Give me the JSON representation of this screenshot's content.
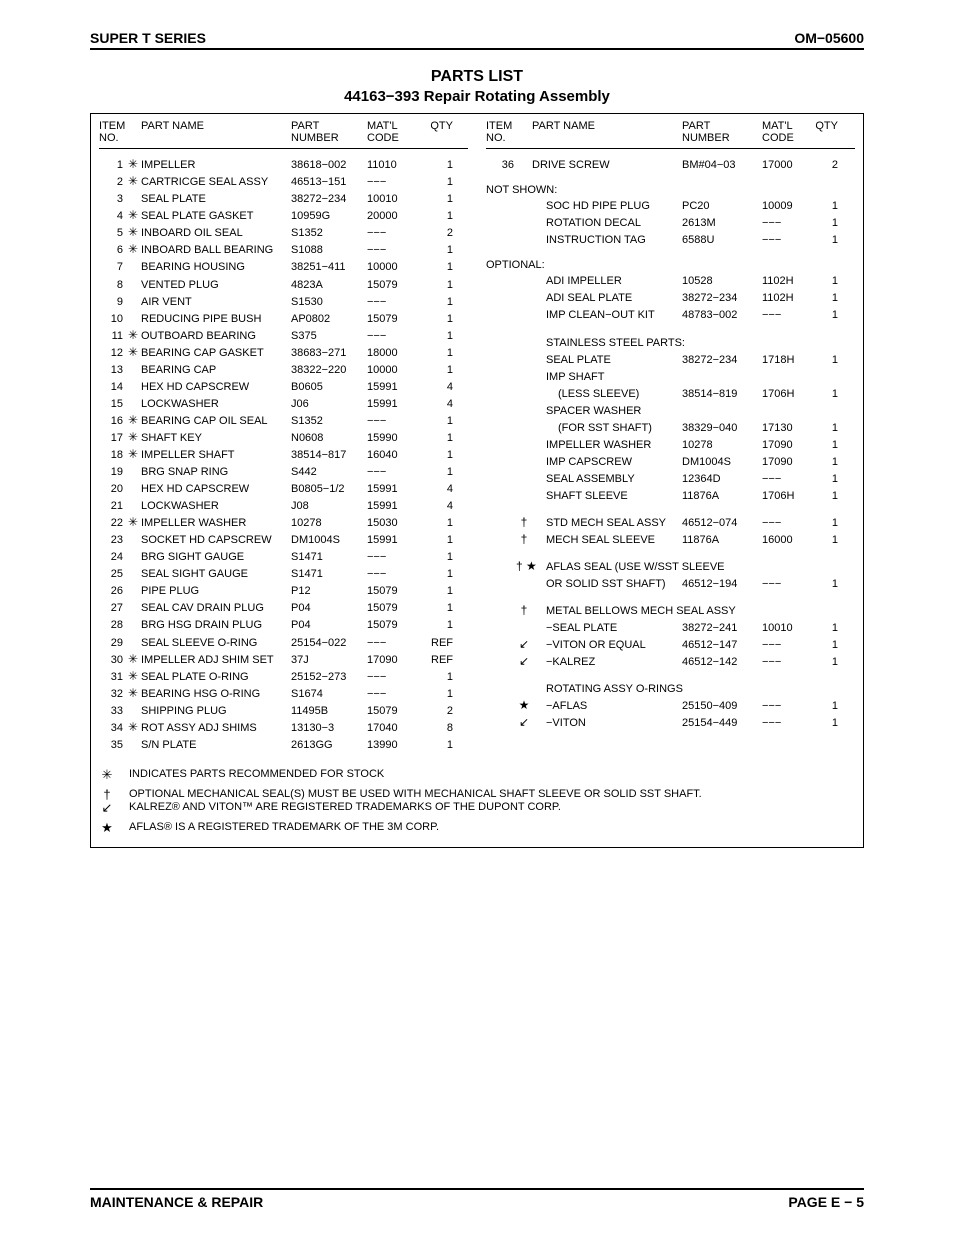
{
  "header": {
    "left": "SUPER T SERIES",
    "right": "OM−05600"
  },
  "title": {
    "line1": "PARTS LIST",
    "line2": "44163−393 Repair Rotating Assembly"
  },
  "headers": {
    "c1a": "ITEM",
    "c1b": "NO.",
    "c3": "PART NAME",
    "c4a": "PART",
    "c4b": "NUMBER",
    "c5a": "MAT'L",
    "c5b": "CODE",
    "c6": "QTY"
  },
  "left_rows": [
    {
      "n": "1",
      "s": "✳",
      "name": "IMPELLER",
      "pn": "38618−002",
      "mc": "11010",
      "q": "1"
    },
    {
      "n": "2",
      "s": "✳",
      "name": "CARTRICGE SEAL ASSY",
      "pn": "46513−151",
      "mc": "−−−",
      "q": "1"
    },
    {
      "n": "3",
      "s": "",
      "name": "SEAL PLATE",
      "pn": "38272−234",
      "mc": "10010",
      "q": "1"
    },
    {
      "n": "4",
      "s": "✳",
      "name": "SEAL PLATE GASKET",
      "pn": "10959G",
      "mc": "20000",
      "q": "1"
    },
    {
      "n": "5",
      "s": "✳",
      "name": "INBOARD OIL SEAL",
      "pn": "S1352",
      "mc": "−−−",
      "q": "2"
    },
    {
      "n": "6",
      "s": "✳",
      "name": "INBOARD BALL BEARING",
      "pn": "S1088",
      "mc": "−−−",
      "q": "1"
    },
    {
      "n": "7",
      "s": "",
      "name": "BEARING HOUSING",
      "pn": "38251−411",
      "mc": "10000",
      "q": "1"
    },
    {
      "n": "8",
      "s": "",
      "name": "VENTED PLUG",
      "pn": "4823A",
      "mc": "15079",
      "q": "1"
    },
    {
      "n": "9",
      "s": "",
      "name": "AIR VENT",
      "pn": "S1530",
      "mc": "−−−",
      "q": "1"
    },
    {
      "n": "10",
      "s": "",
      "name": "REDUCING PIPE BUSH",
      "pn": "AP0802",
      "mc": "15079",
      "q": "1"
    },
    {
      "n": "11",
      "s": "✳",
      "name": "OUTBOARD BEARING",
      "pn": "S375",
      "mc": "−−−",
      "q": "1"
    },
    {
      "n": "12",
      "s": "✳",
      "name": "BEARING CAP GASKET",
      "pn": "38683−271",
      "mc": "18000",
      "q": "1"
    },
    {
      "n": "13",
      "s": "",
      "name": "BEARING CAP",
      "pn": "38322−220",
      "mc": "10000",
      "q": "1"
    },
    {
      "n": "14",
      "s": "",
      "name": "HEX HD CAPSCREW",
      "pn": "B0605",
      "mc": "15991",
      "q": "4"
    },
    {
      "n": "15",
      "s": "",
      "name": "LOCKWASHER",
      "pn": "J06",
      "mc": "15991",
      "q": "4"
    },
    {
      "n": "16",
      "s": "✳",
      "name": "BEARING CAP OIL SEAL",
      "pn": "S1352",
      "mc": "−−−",
      "q": "1"
    },
    {
      "n": "17",
      "s": "✳",
      "name": "SHAFT KEY",
      "pn": "N0608",
      "mc": "15990",
      "q": "1"
    },
    {
      "n": "18",
      "s": "✳",
      "name": "IMPELLER SHAFT",
      "pn": "38514−817",
      "mc": "16040",
      "q": "1"
    },
    {
      "n": "19",
      "s": "",
      "name": "BRG SNAP RING",
      "pn": "S442",
      "mc": "−−−",
      "q": "1"
    },
    {
      "n": "20",
      "s": "",
      "name": "HEX HD CAPSCREW",
      "pn": "B0805−1/2",
      "mc": "15991",
      "q": "4"
    },
    {
      "n": "21",
      "s": "",
      "name": "LOCKWASHER",
      "pn": "J08",
      "mc": "15991",
      "q": "4"
    },
    {
      "n": "22",
      "s": "✳",
      "name": "IMPELLER WASHER",
      "pn": "10278",
      "mc": "15030",
      "q": "1"
    },
    {
      "n": "23",
      "s": "",
      "name": "SOCKET HD CAPSCREW",
      "pn": "DM1004S",
      "mc": "15991",
      "q": "1"
    },
    {
      "n": "24",
      "s": "",
      "name": "BRG SIGHT GAUGE",
      "pn": "S1471",
      "mc": "−−−",
      "q": "1"
    },
    {
      "n": "25",
      "s": "",
      "name": "SEAL SIGHT GAUGE",
      "pn": "S1471",
      "mc": "−−−",
      "q": "1"
    },
    {
      "n": "26",
      "s": "",
      "name": "PIPE PLUG",
      "pn": "P12",
      "mc": "15079",
      "q": "1"
    },
    {
      "n": "27",
      "s": "",
      "name": "SEAL CAV DRAIN PLUG",
      "pn": "P04",
      "mc": "15079",
      "q": "1"
    },
    {
      "n": "28",
      "s": "",
      "name": "BRG HSG DRAIN PLUG",
      "pn": "P04",
      "mc": "15079",
      "q": "1"
    },
    {
      "n": "29",
      "s": "",
      "name": "SEAL SLEEVE O-RING",
      "pn": "25154−022",
      "mc": "−−−",
      "q": "REF"
    },
    {
      "n": "30",
      "s": "✳",
      "name": "IMPELLER ADJ SHIM SET",
      "pn": "37J",
      "mc": "17090",
      "q": "REF"
    },
    {
      "n": "31",
      "s": "✳",
      "name": " SEAL PLATE O-RING",
      "pn": "25152−273",
      "mc": "−−−",
      "q": "1"
    },
    {
      "n": "32",
      "s": "✳",
      "name": "BEARING HSG O-RING",
      "pn": "S1674",
      "mc": "−−−",
      "q": "1"
    },
    {
      "n": "33",
      "s": "",
      "name": "SHIPPING PLUG",
      "pn": "11495B",
      "mc": "15079",
      "q": "2"
    },
    {
      "n": "34",
      "s": "✳",
      "name": "ROT ASSY ADJ SHIMS",
      "pn": "13130−3",
      "mc": "17040",
      "q": "8"
    },
    {
      "n": "35",
      "s": "",
      "name": "S/N PLATE",
      "pn": "2613GG",
      "mc": "13990",
      "q": "1"
    }
  ],
  "right_rows_top": [
    {
      "n": "36",
      "s": "",
      "name": "DRIVE SCREW",
      "pn": "BM#04−03",
      "mc": "17000",
      "q": "2"
    }
  ],
  "section_not_shown": "NOT SHOWN:",
  "not_shown_rows": [
    {
      "name": "SOC HD PIPE PLUG",
      "pn": "PC20",
      "mc": "10009",
      "q": "1"
    },
    {
      "name": "ROTATION DECAL",
      "pn": "2613M",
      "mc": "−−−",
      "q": "1"
    },
    {
      "name": "INSTRUCTION TAG",
      "pn": "6588U",
      "mc": "−−−",
      "q": "1"
    }
  ],
  "section_optional": "OPTIONAL:",
  "optional_rows": [
    {
      "name": "ADI IMPELLER",
      "pn": "10528",
      "mc": "1102H",
      "q": "1"
    },
    {
      "name": "ADI  SEAL PLATE",
      "pn": "38272−234",
      "mc": "1102H",
      "q": "1"
    },
    {
      "name": "IMP CLEAN−OUT KIT",
      "pn": "48783−002",
      "mc": "−−−",
      "q": "1"
    }
  ],
  "section_sst": "STAINLESS STEEL PARTS:",
  "sst_rows": [
    {
      "name": "SEAL PLATE",
      "pn": "38272−234",
      "mc": "1718H",
      "q": "1"
    },
    {
      "name": "IMP SHAFT",
      "pn": "",
      "mc": "",
      "q": ""
    },
    {
      "name": "(LESS SLEEVE)",
      "pn": "38514−819",
      "mc": "1706H",
      "q": "1",
      "indent": true
    },
    {
      "name": "SPACER WASHER",
      "pn": "",
      "mc": "",
      "q": ""
    },
    {
      "name": "(FOR SST SHAFT)",
      "pn": "38329−040",
      "mc": "17130",
      "q": "1",
      "indent": true
    },
    {
      "name": "IMPELLER WASHER",
      "pn": "10278",
      "mc": "17090",
      "q": "1"
    },
    {
      "name": "IMP CAPSCREW",
      "pn": "DM1004S",
      "mc": "17090",
      "q": "1"
    },
    {
      "name": "SEAL ASSEMBLY",
      "pn": "12364D",
      "mc": "−−−",
      "q": "1"
    },
    {
      "name": "SHAFT SLEEVE",
      "pn": "11876A",
      "mc": "1706H",
      "q": "1"
    }
  ],
  "mech_rows": [
    {
      "s": "†",
      "name": "STD MECH SEAL ASSY",
      "pn": "46512−074",
      "mc": "−−−",
      "q": "1"
    },
    {
      "s": "†",
      "name": "MECH SEAL SLEEVE",
      "pn": "11876A",
      "mc": "16000",
      "q": "1"
    }
  ],
  "aflas_rows": [
    {
      "s": "† ★",
      "name": "AFLAS SEAL (USE W/SST SLEEVE",
      "pn": "",
      "mc": "",
      "q": ""
    },
    {
      "s": "",
      "name": "OR SOLID SST SHAFT)",
      "pn": "46512−194",
      "mc": "−−−",
      "q": "1"
    }
  ],
  "bellows_header": {
    "s": "†",
    "name": "METAL BELLOWS MECH SEAL ASSY"
  },
  "bellows_rows": [
    {
      "name": "−SEAL PLATE",
      "pn": "38272−241",
      "mc": "10010",
      "q": "1"
    },
    {
      "s": "↙",
      "name": "−VITON OR EQUAL",
      "pn": "46512−147",
      "mc": "−−−",
      "q": "1"
    },
    {
      "s": "↙",
      "name": "−KALREZ",
      "pn": "46512−142",
      "mc": "−−−",
      "q": "1"
    }
  ],
  "oring_header": "ROTATING ASSY  O-RINGS",
  "oring_rows": [
    {
      "s": "★",
      "name": "−AFLAS",
      "pn": "25150−409",
      "mc": "−−−",
      "q": "1"
    },
    {
      "s": "↙",
      "name": "−VITON",
      "pn": "25154−449",
      "mc": "−−−",
      "q": "1"
    }
  ],
  "notes": [
    {
      "sym": "✳",
      "text": "INDICATES PARTS RECOMMENDED FOR STOCK"
    },
    {
      "sym": "†",
      "text": "OPTIONAL MECHANICAL SEAL(S) MUST BE USED WITH MECHANICAL SHAFT SLEEVE OR SOLID SST SHAFT."
    },
    {
      "sym": "↙",
      "text": "KALREZ® AND VITON™ ARE REGISTERED TRADEMARKS OF THE DUPONT CORP."
    },
    {
      "sym": "★",
      "text": "AFLAS® IS A REGISTERED TRADEMARK OF THE 3M CORP."
    }
  ],
  "footer": {
    "left": "MAINTENANCE & REPAIR",
    "right": "PAGE E − 5"
  }
}
